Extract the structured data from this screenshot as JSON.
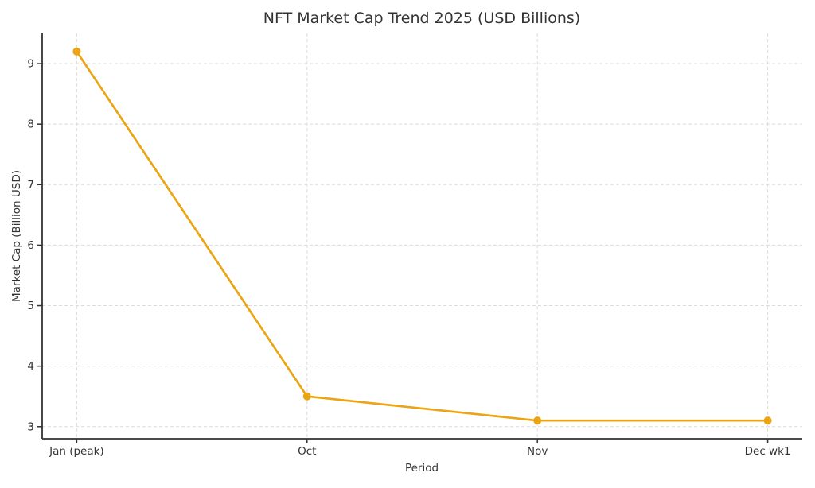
{
  "chart_data": {
    "type": "line",
    "title": "NFT Market Cap Trend 2025 (USD Billions)",
    "xlabel": "Period",
    "ylabel": "Market Cap (Billion USD)",
    "categories": [
      "Jan (peak)",
      "Oct",
      "Nov",
      "Dec wk1"
    ],
    "values": [
      9.2,
      3.5,
      3.1,
      3.1
    ],
    "yticks": [
      3,
      4,
      5,
      6,
      7,
      8,
      9
    ],
    "ylim": [
      2.8,
      9.5
    ],
    "grid": true,
    "grid_style": "dashed",
    "legend_position": "none",
    "colors": {
      "line": "#EBA514",
      "marker": "#EBA514",
      "grid": "#dcdcdc",
      "spine": "#333333",
      "text": "#333333",
      "background": "#ffffff"
    }
  }
}
